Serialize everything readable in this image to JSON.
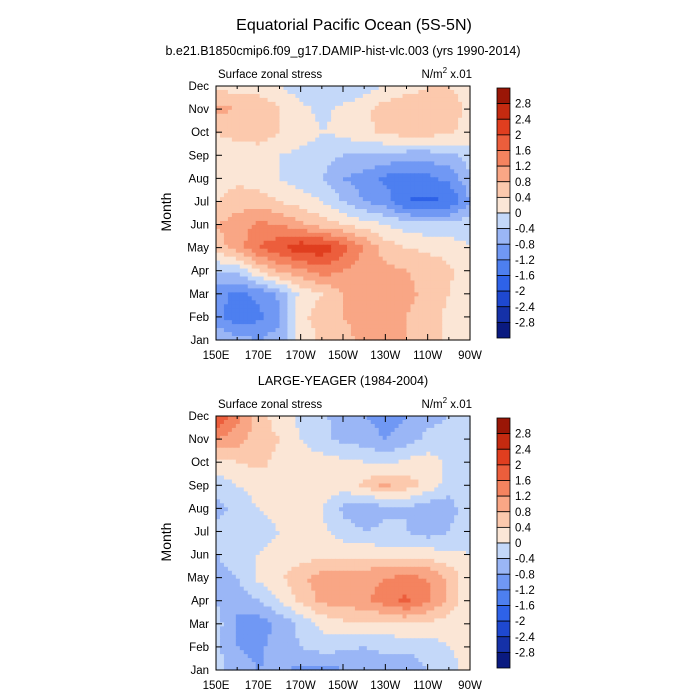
{
  "figure": {
    "title": "Equatorial Pacific Ocean (5S-5N)"
  },
  "chart_data": [
    {
      "type": "heatmap",
      "title": "b.e21.B1850cmip6.f09_g17.DAMIP-hist-vlc.003 (yrs 1990-2014)",
      "left_label": "Surface zonal stress",
      "right_label": "N/m",
      "right_label_sup": "2",
      "right_label_tail": " x.01",
      "ylabel": "Month",
      "x_ticks": [
        "150E",
        "170E",
        "170W",
        "150W",
        "130W",
        "110W",
        "90W"
      ],
      "y_ticks": [
        "Jan",
        "Feb",
        "Mar",
        "Apr",
        "May",
        "Jun",
        "Jul",
        "Aug",
        "Sep",
        "Oct",
        "Nov",
        "Dec"
      ],
      "colorbar_levels": [
        "2.8",
        "2.4",
        "2",
        "1.6",
        "1.2",
        "0.8",
        "0.4",
        "0",
        "-0.4",
        "-0.8",
        "-1.2",
        "-1.6",
        "-2",
        "-2.4",
        "-2.8"
      ],
      "x_lon": [
        150,
        160,
        170,
        180,
        190,
        200,
        210,
        220,
        230,
        240,
        250,
        260,
        270
      ],
      "y_month": [
        1,
        2,
        3,
        4,
        5,
        6,
        7,
        8,
        9,
        10,
        11,
        12
      ],
      "z": [
        [
          -0.4,
          -0.6,
          -0.8,
          -0.6,
          0.1,
          0.5,
          0.7,
          0.9,
          0.9,
          0.8,
          0.6,
          0.3,
          0.1
        ],
        [
          -1.0,
          -1.6,
          -1.3,
          -0.9,
          0.3,
          0.6,
          0.8,
          0.9,
          0.9,
          0.8,
          0.6,
          0.3,
          0.1
        ],
        [
          -1.0,
          -1.3,
          -1.1,
          -0.7,
          0.1,
          0.4,
          0.8,
          1.0,
          1.0,
          0.9,
          0.7,
          0.4,
          0.1
        ],
        [
          -0.4,
          -0.3,
          0.4,
          0.9,
          1.1,
          1.4,
          1.2,
          0.9,
          0.9,
          0.8,
          0.7,
          0.5,
          0.1
        ],
        [
          0.6,
          1.0,
          1.6,
          1.9,
          2.3,
          2.3,
          1.8,
          1.2,
          0.6,
          0.4,
          0.3,
          0.2,
          0.0
        ],
        [
          0.8,
          1.0,
          1.3,
          1.2,
          0.9,
          0.6,
          0.4,
          0.2,
          0.0,
          -0.2,
          -0.3,
          -0.3,
          -0.1
        ],
        [
          0.4,
          0.6,
          0.6,
          0.4,
          0.2,
          0.0,
          -0.4,
          -0.8,
          -1.0,
          -1.6,
          -1.7,
          -1.6,
          -0.8
        ],
        [
          0.2,
          0.3,
          0.2,
          0.0,
          -0.2,
          -0.4,
          -0.8,
          -1.0,
          -1.3,
          -1.4,
          -1.3,
          -1.1,
          -0.5
        ],
        [
          0.1,
          0.1,
          0.1,
          0.0,
          -0.1,
          -0.2,
          -0.4,
          -0.4,
          -0.5,
          -0.6,
          -0.6,
          -0.5,
          -0.2
        ],
        [
          0.4,
          0.6,
          0.7,
          0.4,
          0.2,
          0.0,
          0.1,
          0.3,
          0.5,
          0.6,
          0.6,
          0.5,
          0.2
        ],
        [
          0.9,
          0.8,
          0.8,
          0.4,
          0.1,
          -0.1,
          0.1,
          0.3,
          0.6,
          0.7,
          0.7,
          0.6,
          0.3
        ],
        [
          0.3,
          0.2,
          0.1,
          0.0,
          -0.2,
          -0.4,
          -0.4,
          -0.2,
          0.0,
          0.2,
          0.4,
          0.4,
          0.2
        ]
      ]
    },
    {
      "type": "heatmap",
      "title": "LARGE-YEAGER (1984-2004)",
      "left_label": "Surface zonal stress",
      "right_label": "N/m",
      "right_label_sup": "2",
      "right_label_tail": " x.01",
      "ylabel": "Month",
      "x_ticks": [
        "150E",
        "170E",
        "170W",
        "150W",
        "130W",
        "110W",
        "90W"
      ],
      "y_ticks": [
        "Jan",
        "Feb",
        "Mar",
        "Apr",
        "May",
        "Jun",
        "Jul",
        "Aug",
        "Sep",
        "Oct",
        "Nov",
        "Dec"
      ],
      "colorbar_levels": [
        "2.8",
        "2.4",
        "2",
        "1.6",
        "1.2",
        "0.8",
        "0.4",
        "0",
        "-0.4",
        "-0.8",
        "-1.2",
        "-1.6",
        "-2",
        "-2.4",
        "-2.8"
      ],
      "x_lon": [
        150,
        160,
        170,
        180,
        190,
        200,
        210,
        220,
        230,
        240,
        250,
        260,
        270
      ],
      "y_month": [
        1,
        2,
        3,
        4,
        5,
        6,
        7,
        8,
        9,
        10,
        11,
        12
      ],
      "z": [
        [
          -0.2,
          -0.6,
          -0.8,
          -0.7,
          -0.9,
          -1.0,
          -0.8,
          -0.8,
          -0.6,
          -0.7,
          -0.4,
          -0.1,
          0.1
        ],
        [
          -0.3,
          -0.8,
          -0.9,
          -0.6,
          -0.4,
          -0.2,
          -0.3,
          -0.4,
          -0.3,
          -0.3,
          -0.2,
          0.0,
          0.1
        ],
        [
          -0.2,
          -0.9,
          -1.0,
          -0.7,
          -0.3,
          0.1,
          0.3,
          0.3,
          0.3,
          0.4,
          0.3,
          0.2,
          0.1
        ],
        [
          -0.4,
          -0.7,
          -0.4,
          0.0,
          0.5,
          0.9,
          1.0,
          1.1,
          1.4,
          1.7,
          1.3,
          0.7,
          0.1
        ],
        [
          -0.6,
          -0.4,
          0.1,
          0.3,
          0.7,
          1.0,
          1.1,
          1.1,
          1.2,
          1.3,
          1.2,
          0.7,
          0.1
        ],
        [
          -0.4,
          -0.2,
          0.0,
          0.1,
          0.2,
          0.3,
          0.3,
          0.3,
          0.2,
          0.2,
          0.2,
          0.1,
          0.0
        ],
        [
          -0.3,
          -0.2,
          -0.1,
          0.0,
          0.2,
          0.1,
          -0.2,
          -0.4,
          -0.3,
          -0.4,
          -0.6,
          -0.4,
          -0.1
        ],
        [
          -0.5,
          -0.3,
          0.0,
          0.1,
          0.2,
          0.0,
          -0.5,
          -0.7,
          -0.5,
          -0.4,
          -0.7,
          -0.6,
          -0.1
        ],
        [
          -0.3,
          0.0,
          0.2,
          0.3,
          0.3,
          0.3,
          0.2,
          0.5,
          0.9,
          0.6,
          0.3,
          -0.2,
          -0.1
        ],
        [
          0.3,
          0.4,
          0.5,
          0.3,
          0.2,
          0.2,
          0.1,
          0.0,
          -0.1,
          0.1,
          0.2,
          -0.1,
          0.0
        ],
        [
          1.2,
          1.0,
          0.6,
          0.4,
          0.0,
          -0.3,
          -0.5,
          -0.6,
          -0.8,
          -0.6,
          -0.3,
          -0.3,
          0.0
        ],
        [
          2.0,
          1.3,
          0.6,
          0.2,
          -0.1,
          -0.3,
          -0.6,
          -0.8,
          -1.0,
          -0.8,
          -0.5,
          -0.4,
          0.0
        ]
      ]
    }
  ]
}
